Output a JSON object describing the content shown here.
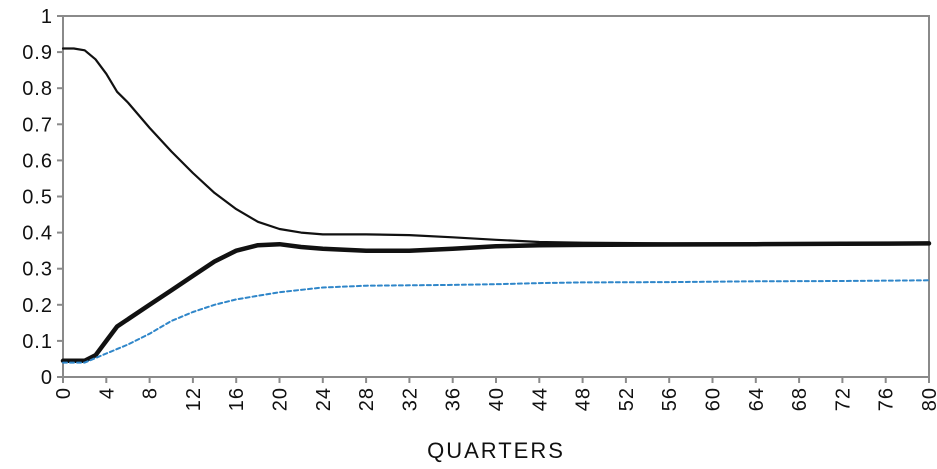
{
  "chart_data": {
    "type": "line",
    "title": "",
    "xlabel": "QUARTERS",
    "ylabel": "",
    "xlim": [
      0,
      80
    ],
    "ylim": [
      0,
      1
    ],
    "x_ticks": [
      "0",
      "4",
      "8",
      "12",
      "16",
      "20",
      "24",
      "28",
      "32",
      "36",
      "40",
      "44",
      "48",
      "52",
      "56",
      "60",
      "64",
      "68",
      "72",
      "76",
      "80"
    ],
    "y_ticks": [
      "0",
      "0.1",
      "0.2",
      "0.3",
      "0.4",
      "0.5",
      "0.6",
      "0.7",
      "0.8",
      "0.9",
      "1"
    ],
    "grid": false,
    "legend": "none",
    "colors": {
      "axis_frame": "#8a8a8a",
      "series_line": "#111111",
      "dashed_series": "#2f86c9"
    },
    "series": [
      {
        "style": "thin-black",
        "points": [
          [
            0,
            0.91
          ],
          [
            1,
            0.91
          ],
          [
            2,
            0.905
          ],
          [
            3,
            0.88
          ],
          [
            4,
            0.84
          ],
          [
            5,
            0.79
          ],
          [
            6,
            0.76
          ],
          [
            8,
            0.69
          ],
          [
            10,
            0.625
          ],
          [
            12,
            0.565
          ],
          [
            14,
            0.51
          ],
          [
            16,
            0.465
          ],
          [
            18,
            0.43
          ],
          [
            20,
            0.41
          ],
          [
            22,
            0.4
          ],
          [
            24,
            0.395
          ],
          [
            28,
            0.395
          ],
          [
            32,
            0.393
          ],
          [
            36,
            0.387
          ],
          [
            40,
            0.38
          ],
          [
            44,
            0.374
          ],
          [
            48,
            0.372
          ],
          [
            56,
            0.37
          ],
          [
            64,
            0.37
          ],
          [
            72,
            0.37
          ],
          [
            80,
            0.37
          ]
        ]
      },
      {
        "style": "thick-black",
        "points": [
          [
            0,
            0.045
          ],
          [
            1,
            0.045
          ],
          [
            2,
            0.045
          ],
          [
            3,
            0.06
          ],
          [
            4,
            0.1
          ],
          [
            5,
            0.14
          ],
          [
            6,
            0.16
          ],
          [
            8,
            0.2
          ],
          [
            10,
            0.24
          ],
          [
            12,
            0.28
          ],
          [
            14,
            0.32
          ],
          [
            16,
            0.35
          ],
          [
            18,
            0.365
          ],
          [
            20,
            0.368
          ],
          [
            22,
            0.36
          ],
          [
            24,
            0.355
          ],
          [
            28,
            0.35
          ],
          [
            32,
            0.35
          ],
          [
            36,
            0.355
          ],
          [
            40,
            0.362
          ],
          [
            44,
            0.365
          ],
          [
            48,
            0.366
          ],
          [
            56,
            0.367
          ],
          [
            64,
            0.368
          ],
          [
            72,
            0.369
          ],
          [
            80,
            0.37
          ]
        ]
      },
      {
        "style": "dashed-blue",
        "points": [
          [
            0,
            0.04
          ],
          [
            2,
            0.04
          ],
          [
            4,
            0.065
          ],
          [
            6,
            0.09
          ],
          [
            8,
            0.12
          ],
          [
            10,
            0.155
          ],
          [
            12,
            0.18
          ],
          [
            14,
            0.2
          ],
          [
            16,
            0.215
          ],
          [
            20,
            0.235
          ],
          [
            24,
            0.248
          ],
          [
            28,
            0.253
          ],
          [
            32,
            0.254
          ],
          [
            36,
            0.255
          ],
          [
            40,
            0.257
          ],
          [
            44,
            0.26
          ],
          [
            48,
            0.262
          ],
          [
            56,
            0.263
          ],
          [
            64,
            0.265
          ],
          [
            72,
            0.266
          ],
          [
            80,
            0.268
          ]
        ]
      }
    ]
  }
}
